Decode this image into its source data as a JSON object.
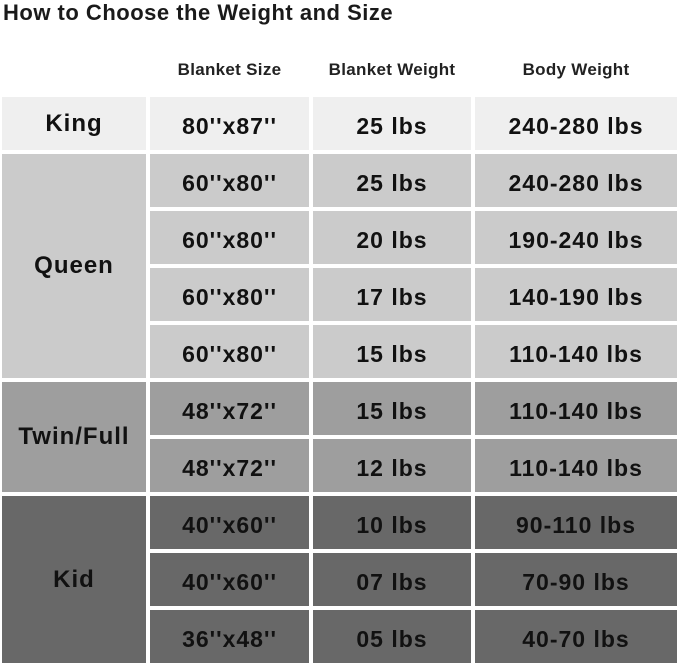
{
  "title": "How to Choose the Weight and Size",
  "headers": [
    "Blanket Size",
    "Blanket Weight",
    "Body Weight"
  ],
  "colors": {
    "King": "#efefef",
    "Queen": "#cbcbcb",
    "Twin/Full": "#9e9e9e",
    "Kid": "#686868"
  },
  "groups": [
    {
      "name": "King",
      "rows": [
        [
          "80''x87''",
          "25 lbs",
          "240-280 lbs"
        ]
      ]
    },
    {
      "name": "Queen",
      "rows": [
        [
          "60''x80''",
          "25 lbs",
          "240-280 lbs"
        ],
        [
          "60''x80''",
          "20 lbs",
          "190-240 lbs"
        ],
        [
          "60''x80''",
          "17 lbs",
          "140-190 lbs"
        ],
        [
          "60''x80''",
          "15 lbs",
          "110-140 lbs"
        ]
      ]
    },
    {
      "name": "Twin/Full",
      "rows": [
        [
          "48''x72''",
          "15 lbs",
          "110-140 lbs"
        ],
        [
          "48''x72''",
          "12 lbs",
          "110-140 lbs"
        ]
      ]
    },
    {
      "name": "Kid",
      "rows": [
        [
          "40''x60''",
          "10 lbs",
          "90-110 lbs"
        ],
        [
          "40''x60''",
          "07 lbs",
          "70-90 lbs"
        ],
        [
          "36''x48''",
          "05 lbs",
          "40-70 lbs"
        ]
      ]
    }
  ]
}
